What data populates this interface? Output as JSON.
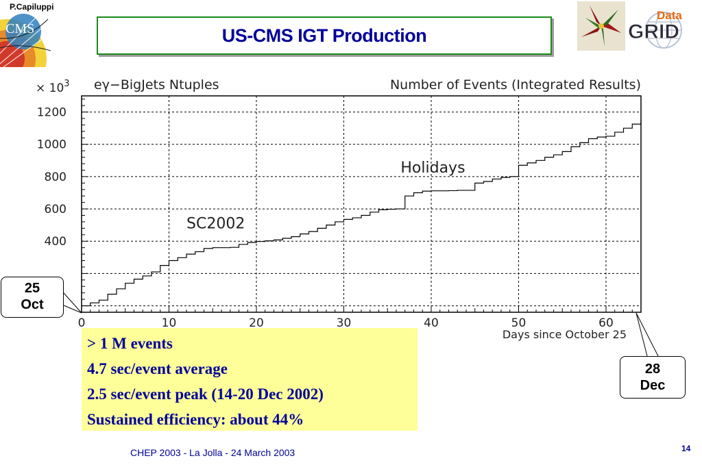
{
  "slide": {
    "author": "P.Capiluppi",
    "title": "US-CMS IGT Production",
    "footer": "CHEP 2003 - La Jolla - 24 March 2003",
    "page_number": "14",
    "logos": {
      "cms": "CMS",
      "datagrid_top": "Data",
      "datagrid_bottom": "GRID"
    }
  },
  "callouts": {
    "start_line1": "25",
    "start_line2": "Oct",
    "end_line1": "28",
    "end_line2": "Dec"
  },
  "notes": [
    "> 1 M events",
    "4.7 sec/event average",
    "2.5 sec/event peak (14-20 Dec 2002)",
    "Sustained efficiency: about 44%"
  ],
  "colors": {
    "title_text": "#00009a",
    "title_border": "#1a8a1a",
    "notes_bg": "#ffff99",
    "footer_text": "#00009a"
  },
  "chart_data": {
    "type": "line",
    "step": true,
    "title_left": "eγ−BigJets Ntuples",
    "title_right": "Number of Events (Integrated Results)",
    "xlabel": "Days since October 25",
    "y_multiplier": "× 10",
    "y_multiplier_exp": "3",
    "xlim": [
      0,
      64
    ],
    "ylim": [
      -40,
      1300
    ],
    "x_ticks": [
      0,
      10,
      20,
      30,
      40,
      50,
      60
    ],
    "y_ticks": [
      400,
      600,
      800,
      1000,
      1200
    ],
    "grid": true,
    "annotations": [
      {
        "text": "SC2002",
        "x": 12,
        "y": 480
      },
      {
        "text": "Holidays",
        "x": 36.5,
        "y": 825
      }
    ],
    "series": [
      {
        "x": [
          0,
          1,
          2,
          3,
          4,
          5,
          6,
          7,
          8,
          9,
          10,
          11,
          12,
          13,
          14,
          15,
          16,
          17,
          18,
          19,
          20,
          21,
          22,
          23,
          24,
          25,
          26,
          27,
          28,
          29,
          30,
          31,
          32,
          33,
          34,
          35,
          36,
          37,
          38,
          39,
          40,
          41,
          42,
          43,
          44,
          45,
          46,
          47,
          48,
          49,
          50,
          51,
          52,
          53,
          54,
          55,
          56,
          57,
          58,
          59,
          60,
          61,
          62,
          63,
          64
        ],
        "y": [
          0,
          18,
          35,
          72,
          105,
          140,
          165,
          185,
          210,
          250,
          280,
          298,
          320,
          335,
          355,
          360,
          360,
          362,
          380,
          392,
          398,
          402,
          408,
          418,
          428,
          445,
          460,
          480,
          500,
          520,
          535,
          545,
          560,
          580,
          595,
          598,
          600,
          680,
          700,
          710,
          712,
          712,
          713,
          715,
          715,
          760,
          770,
          785,
          795,
          800,
          870,
          885,
          900,
          920,
          935,
          955,
          985,
          1010,
          1035,
          1045,
          1050,
          1075,
          1100,
          1125,
          1150
        ]
      }
    ]
  }
}
